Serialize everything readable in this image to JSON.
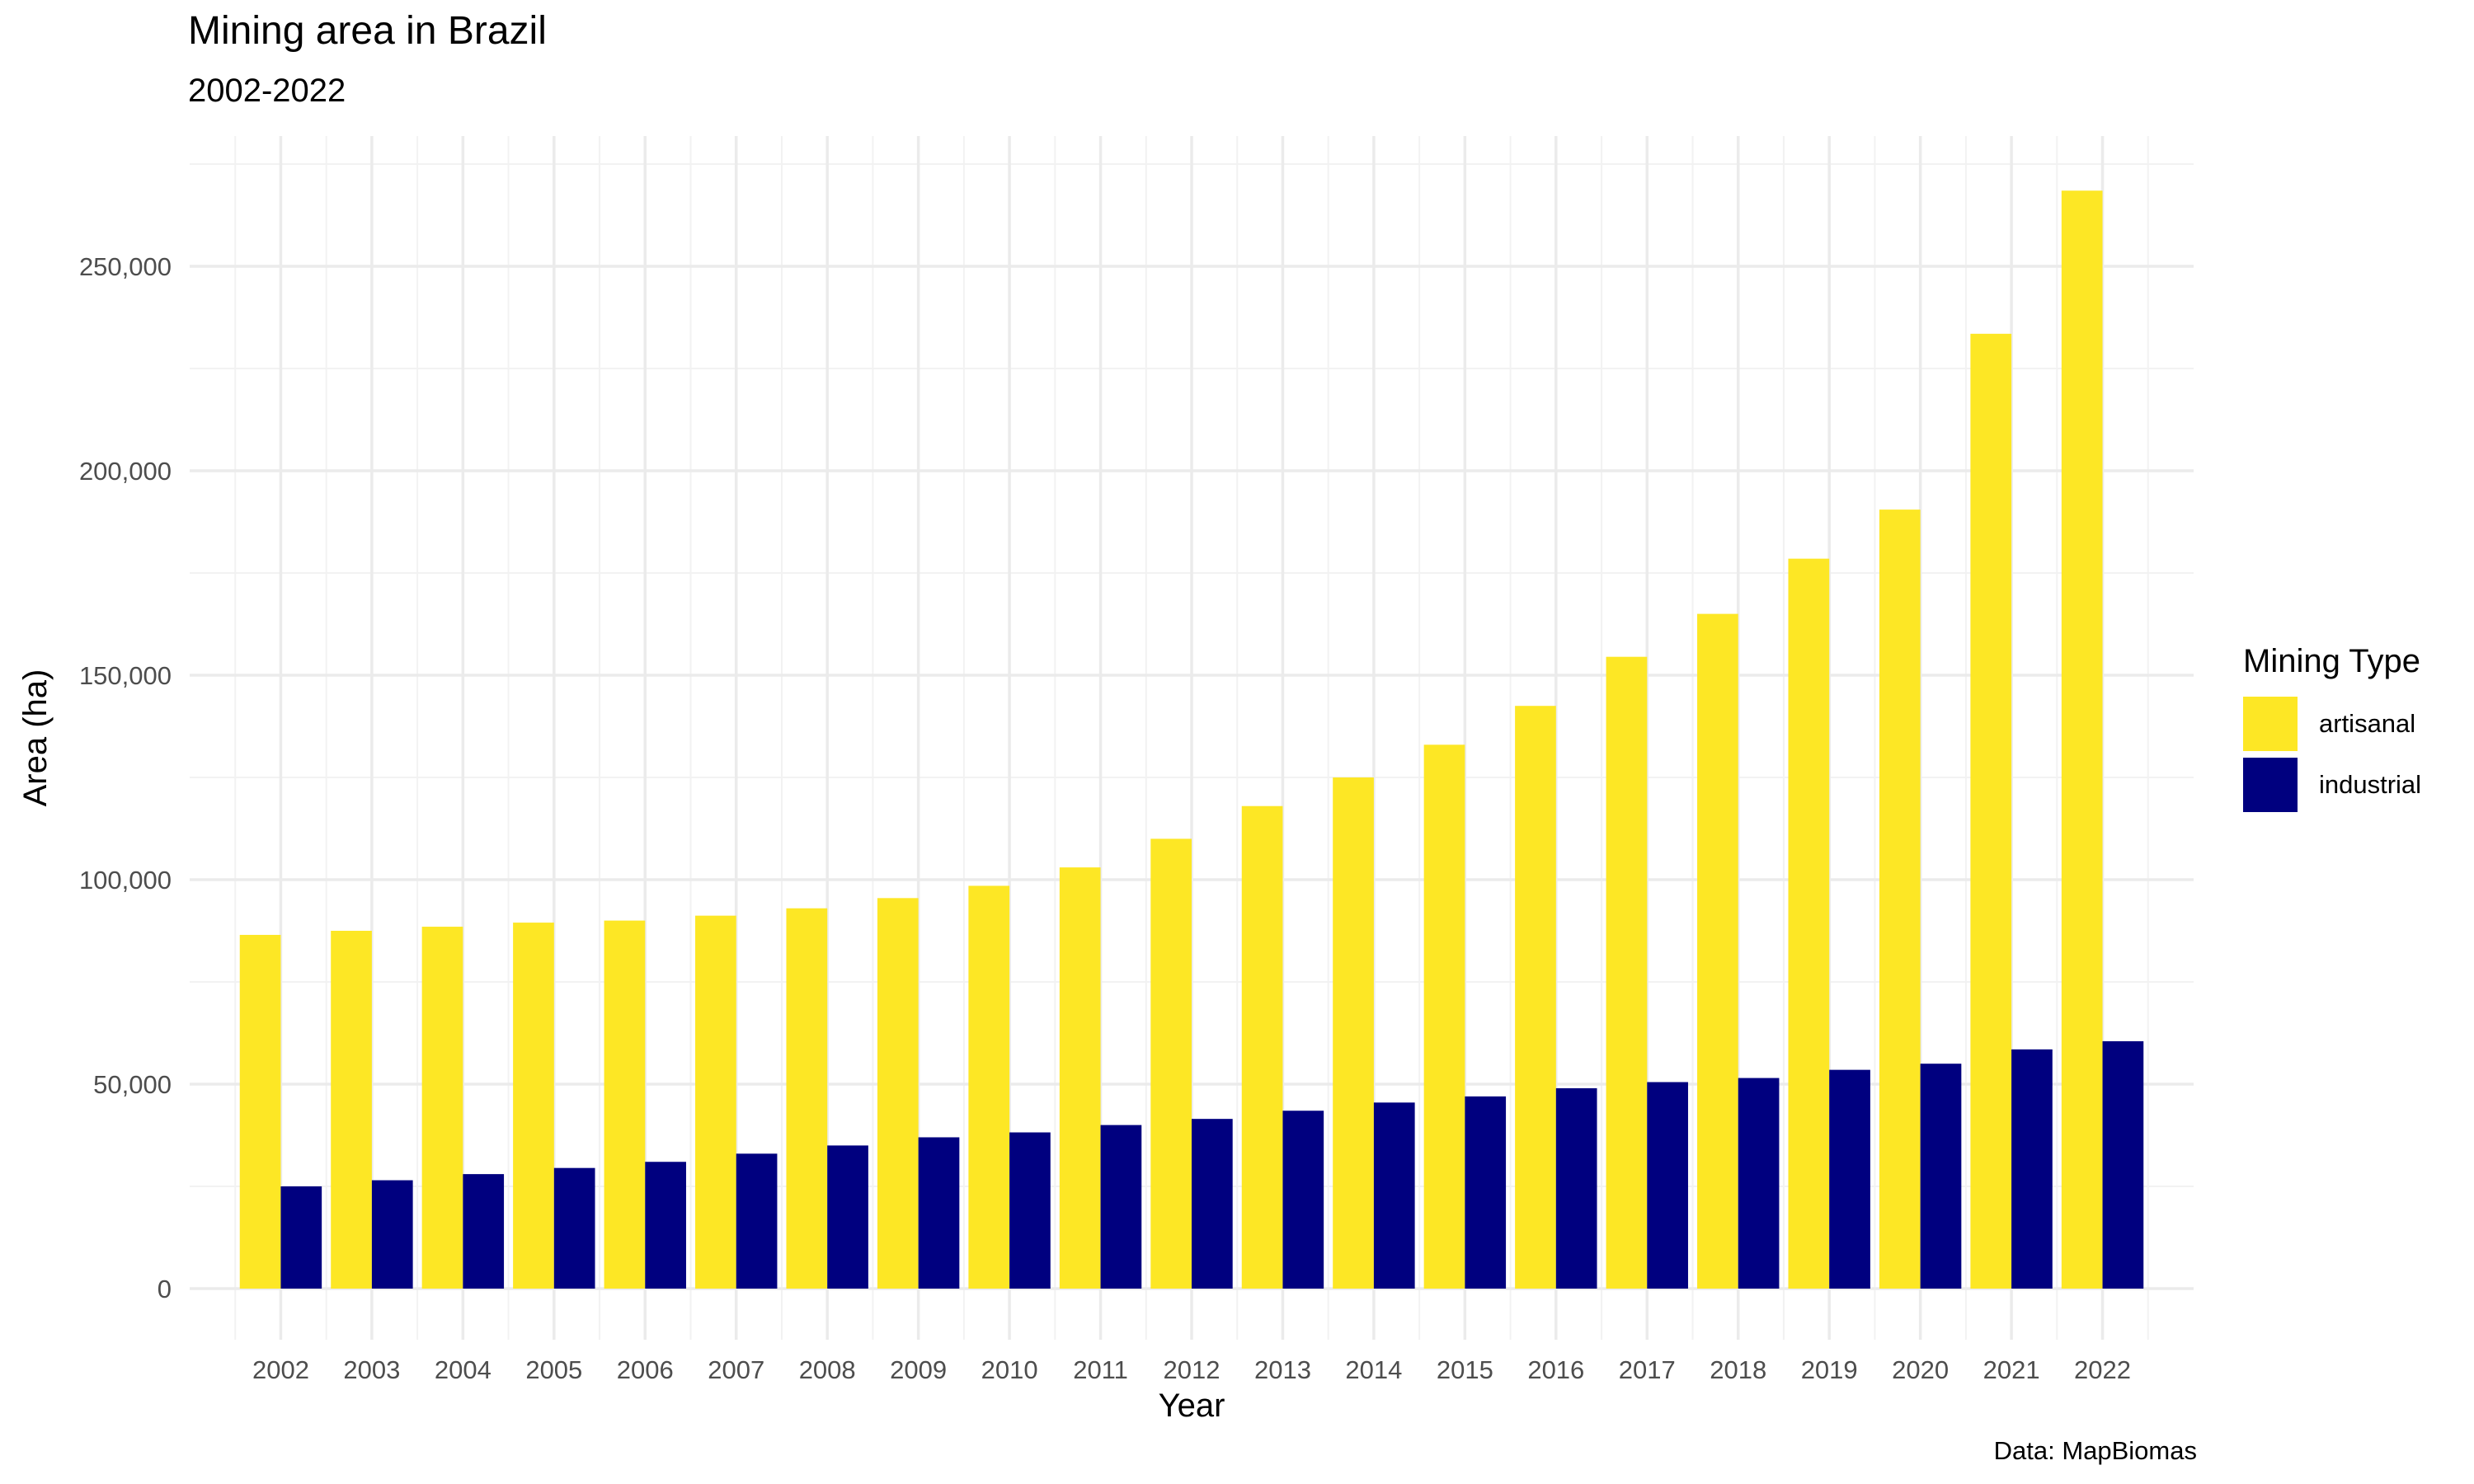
{
  "chart_data": {
    "type": "bar",
    "title": "Mining area in Brazil",
    "subtitle": "2002-2022",
    "xlabel": "Year",
    "ylabel": "Area (ha)",
    "caption": "Data: MapBiomas",
    "legend_title": "Mining Type",
    "legend_position": "right",
    "ylim": [
      0,
      280000
    ],
    "yticks": [
      0,
      50000,
      100000,
      150000,
      200000,
      250000
    ],
    "ytick_labels": [
      "0",
      "50,000",
      "100,000",
      "150,000",
      "200,000",
      "250,000"
    ],
    "grid": true,
    "categories": [
      "2002",
      "2003",
      "2004",
      "2005",
      "2006",
      "2007",
      "2008",
      "2009",
      "2010",
      "2011",
      "2012",
      "2013",
      "2014",
      "2015",
      "2016",
      "2017",
      "2018",
      "2019",
      "2020",
      "2021",
      "2022"
    ],
    "series": [
      {
        "name": "artisanal",
        "color": "#FDE725",
        "values": [
          86500,
          87500,
          88500,
          89500,
          90000,
          91200,
          93000,
          95500,
          98500,
          103000,
          110000,
          118000,
          125000,
          133000,
          142500,
          154500,
          165000,
          178500,
          190500,
          233500,
          268500
        ]
      },
      {
        "name": "industrial",
        "color": "#00007F",
        "values": [
          25000,
          26500,
          28000,
          29500,
          31000,
          33000,
          35000,
          37000,
          38200,
          40000,
          41500,
          43500,
          45500,
          47000,
          49000,
          50500,
          51500,
          53500,
          55000,
          58500,
          60500
        ]
      }
    ]
  }
}
